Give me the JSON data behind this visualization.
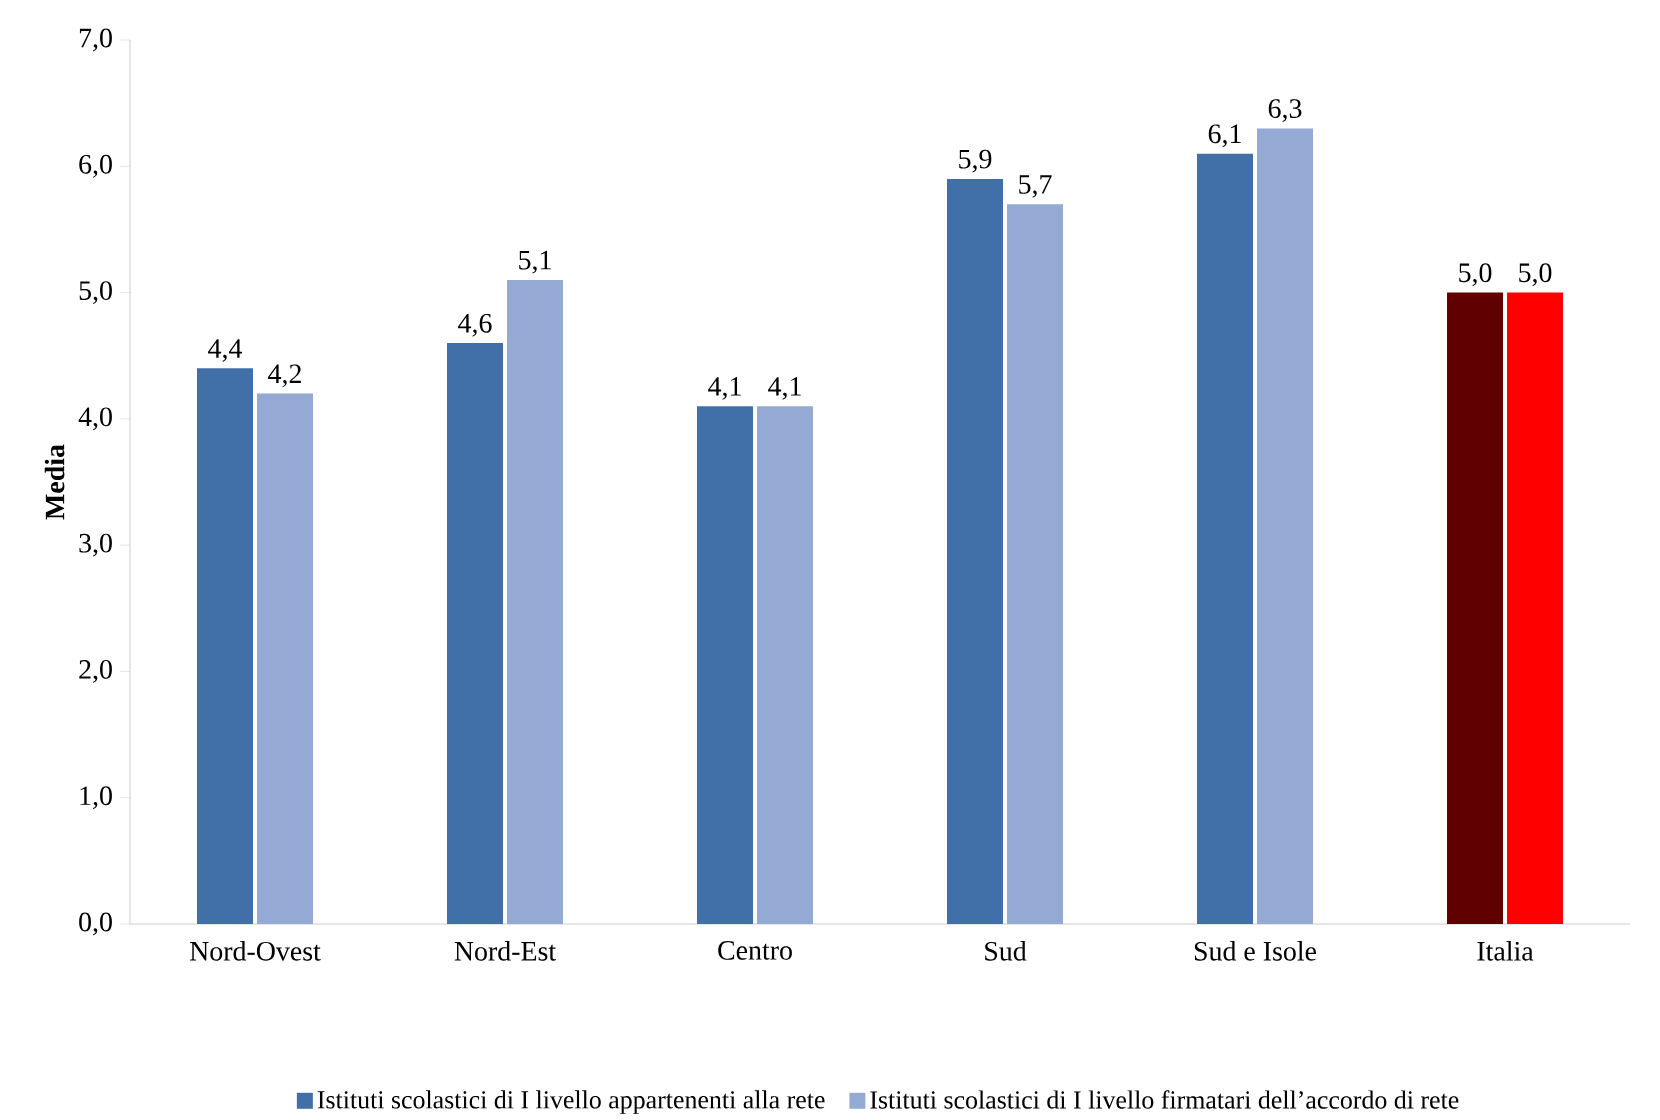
{
  "chart_data": {
    "type": "bar",
    "ylabel": "Media",
    "categories": [
      "Nord-Ovest",
      "Nord-Est",
      "Centro",
      "Sud",
      "Sud e Isole",
      "Italia"
    ],
    "series": [
      {
        "name": "Istituti scolastici di I livello appartenenti alla rete",
        "color": "#4170a8",
        "colors": [
          "#4170a8",
          "#4170a8",
          "#4170a8",
          "#4170a8",
          "#4170a8",
          "#600000"
        ],
        "values": [
          4.4,
          4.6,
          4.1,
          5.9,
          6.1,
          5.0
        ],
        "value_labels": [
          "4,4",
          "4,6",
          "4,1",
          "5,9",
          "6,1",
          "5,0"
        ]
      },
      {
        "name": "Istituti scolastici di I livello firmatari dell’accordo di rete",
        "color": "#94aad4",
        "colors": [
          "#94aad4",
          "#94aad4",
          "#94aad4",
          "#94aad4",
          "#94aad4",
          "#ff0000"
        ],
        "values": [
          4.2,
          5.1,
          4.1,
          5.7,
          6.3,
          5.0
        ],
        "value_labels": [
          "4,2",
          "5,1",
          "4,1",
          "5,7",
          "6,3",
          "5,0"
        ]
      }
    ],
    "ylim": [
      0,
      7
    ],
    "yticks": [
      {
        "value": 0,
        "label": "0,0"
      },
      {
        "value": 1,
        "label": "1,0"
      },
      {
        "value": 2,
        "label": "2,0"
      },
      {
        "value": 3,
        "label": "3,0"
      },
      {
        "value": 4,
        "label": "4,0"
      },
      {
        "value": 5,
        "label": "5,0"
      },
      {
        "value": 6,
        "label": "6,0"
      },
      {
        "value": 7,
        "label": "7,0"
      }
    ],
    "legend": "bottom"
  }
}
